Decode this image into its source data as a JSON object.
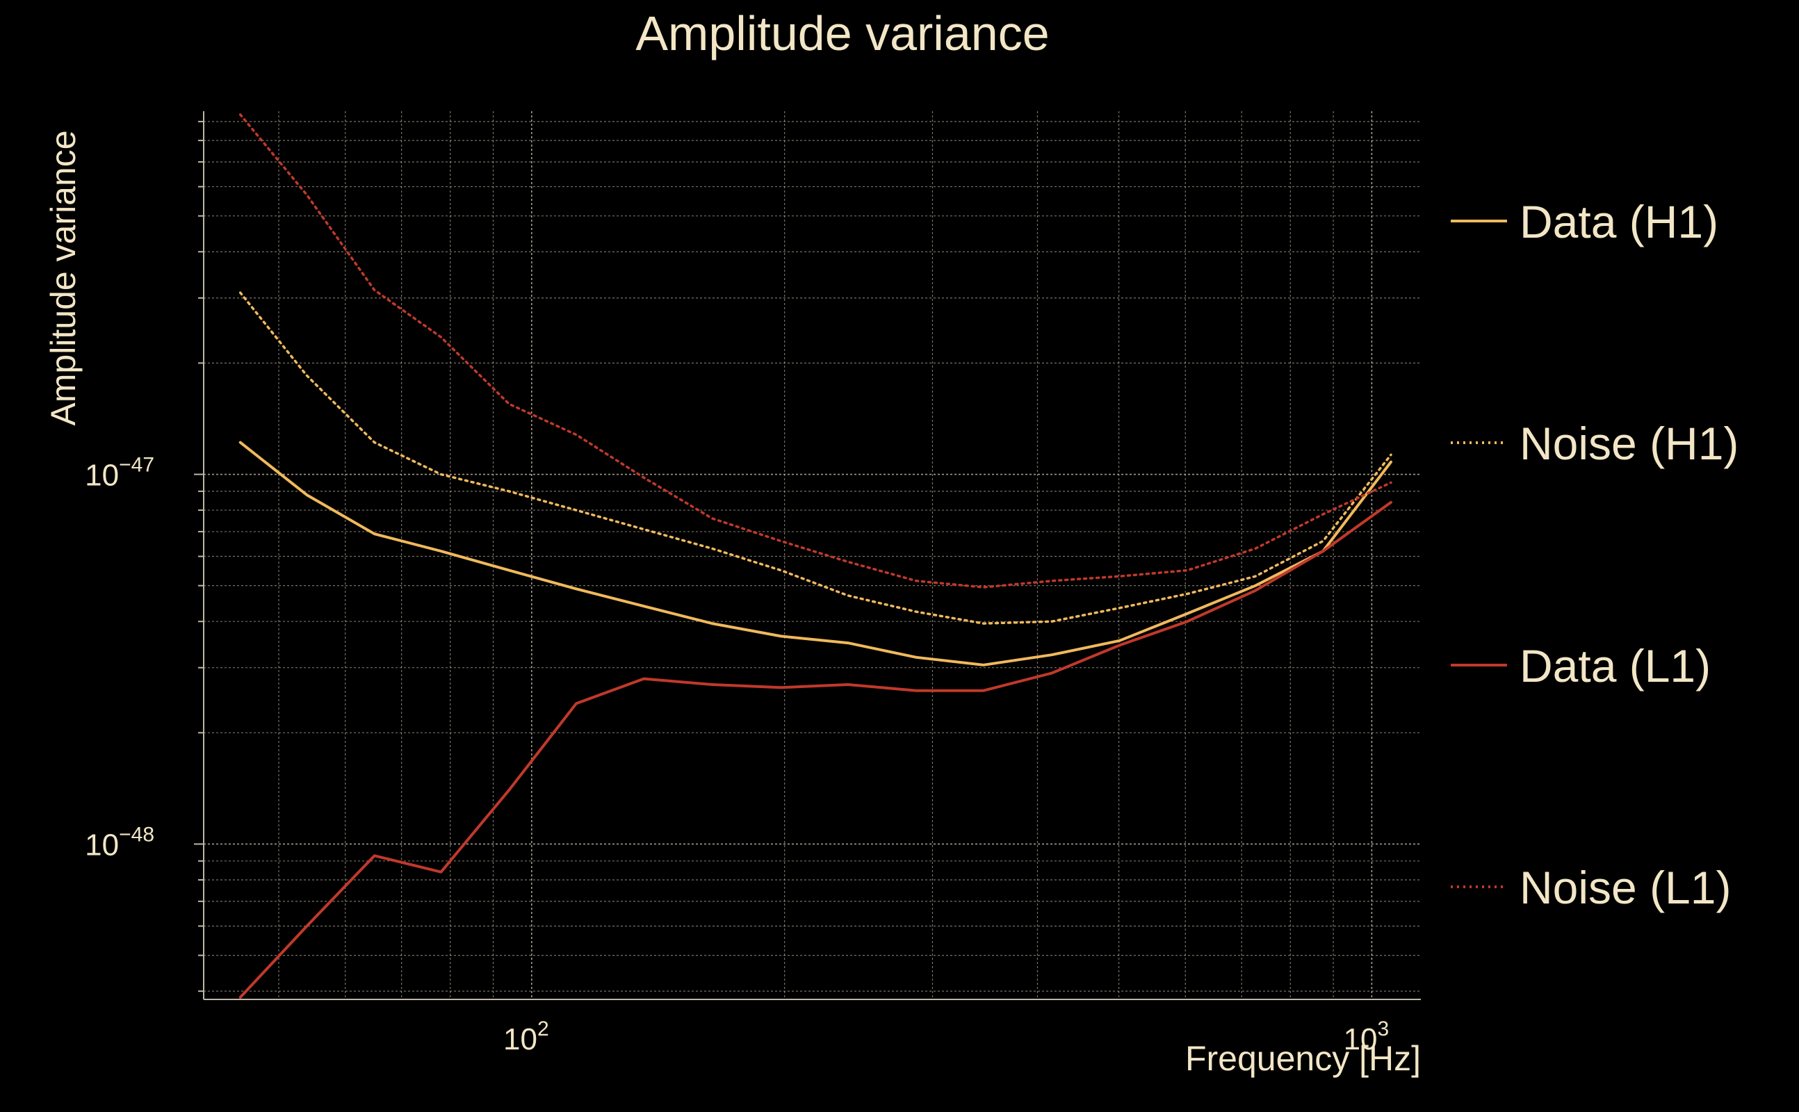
{
  "chart_data": {
    "type": "line",
    "title": "Amplitude variance",
    "xlabel": "Frequency [Hz]",
    "ylabel": "Amplitude variance",
    "xscale": "log",
    "yscale": "log",
    "xlim": [
      40.7,
      1144
    ],
    "ylim": [
      3.8e-49,
      9.6e-47
    ],
    "x_ticks": [
      {
        "base": "10",
        "exp": "2",
        "value": 100
      },
      {
        "base": "10",
        "exp": "3",
        "value": 1000
      }
    ],
    "y_ticks": [
      {
        "base": "10",
        "exp": "−47",
        "value": 1e-47
      },
      {
        "base": "10",
        "exp": "−48",
        "value": 1e-48
      }
    ],
    "grid": true,
    "legend_position": "right",
    "x": [
      45,
      54,
      65,
      78,
      94,
      113,
      136,
      164,
      198,
      238,
      287,
      345,
      416,
      501,
      603,
      727,
      875,
      1054
    ],
    "series": [
      {
        "name": "Data (H1)",
        "color": "#f0b95c",
        "style": "solid",
        "values": [
          1.22e-47,
          8.8e-48,
          6.9e-48,
          6.2e-48,
          5.5e-48,
          4.9e-48,
          4.4e-48,
          3.95e-48,
          3.65e-48,
          3.5e-48,
          3.2e-48,
          3.05e-48,
          3.25e-48,
          3.55e-48,
          4.2e-48,
          5e-48,
          6.2e-48,
          1.08e-47
        ]
      },
      {
        "name": "Noise (H1)",
        "color": "#f0b95c",
        "style": "dotted",
        "values": [
          3.1e-47,
          1.85e-47,
          1.22e-47,
          1e-47,
          9e-48,
          8e-48,
          7.1e-48,
          6.3e-48,
          5.5e-48,
          4.7e-48,
          4.25e-48,
          3.95e-48,
          4e-48,
          4.35e-48,
          4.75e-48,
          5.3e-48,
          6.6e-48,
          1.13e-47
        ]
      },
      {
        "name": "Data (L1)",
        "color": "#c0392b",
        "style": "solid",
        "values": [
          3.85e-49,
          6e-49,
          9.3e-49,
          8.4e-49,
          1.4e-48,
          2.4e-48,
          2.8e-48,
          2.7e-48,
          2.65e-48,
          2.7e-48,
          2.6e-48,
          2.6e-48,
          2.9e-48,
          3.45e-48,
          4e-48,
          4.85e-48,
          6.2e-48,
          8.4e-48
        ]
      },
      {
        "name": "Noise (L1)",
        "color": "#c0392b",
        "style": "dotted",
        "values": [
          9.4e-47,
          5.7e-47,
          3.15e-47,
          2.35e-47,
          1.55e-47,
          1.28e-47,
          9.8e-48,
          7.6e-48,
          6.6e-48,
          5.8e-48,
          5.15e-48,
          4.95e-48,
          5.15e-48,
          5.3e-48,
          5.5e-48,
          6.3e-48,
          7.8e-48,
          9.5e-48
        ]
      }
    ]
  }
}
